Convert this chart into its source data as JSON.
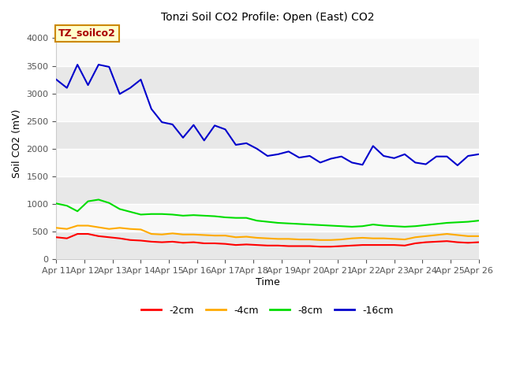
{
  "title": "Tonzi Soil CO2 Profile: Open (East) CO2",
  "ylabel": "Soil CO2 (mV)",
  "xlabel": "Time",
  "annotation": "TZ_soilco2",
  "ylim": [
    0,
    4200
  ],
  "yticks": [
    0,
    500,
    1000,
    1500,
    2000,
    2500,
    3000,
    3500,
    4000
  ],
  "colors": {
    "-2cm": "#ff0000",
    "-4cm": "#ffaa00",
    "-8cm": "#00dd00",
    "-16cm": "#0000cc"
  },
  "x_labels": [
    "Apr 11",
    "Apr 12",
    "Apr 13",
    "Apr 14",
    "Apr 15",
    "Apr 16",
    "Apr 17",
    "Apr 18",
    "Apr 19",
    "Apr 20",
    "Apr 21",
    "Apr 22",
    "Apr 23",
    "Apr 24",
    "Apr 25",
    "Apr 26"
  ],
  "series_16cm": [
    3250,
    3100,
    3520,
    3150,
    3520,
    3480,
    2990,
    3100,
    3250,
    2720,
    2480,
    2440,
    2200,
    2430,
    2150,
    2420,
    2350,
    2070,
    2100,
    2000,
    1870,
    1900,
    1950,
    1840,
    1870,
    1750,
    1820,
    1860,
    1750,
    1710,
    2050,
    1870,
    1830,
    1900,
    1750,
    1720,
    1860,
    1860,
    1700,
    1870,
    1900
  ],
  "series_8cm": [
    1010,
    970,
    870,
    1050,
    1080,
    1020,
    910,
    860,
    810,
    820,
    820,
    810,
    790,
    800,
    790,
    780,
    760,
    750,
    750,
    700,
    680,
    660,
    650,
    640,
    630,
    620,
    610,
    600,
    590,
    600,
    630,
    610,
    600,
    590,
    600,
    620,
    640,
    660,
    670,
    680,
    700
  ],
  "series_4cm": [
    570,
    550,
    610,
    610,
    580,
    550,
    570,
    550,
    540,
    460,
    450,
    470,
    450,
    450,
    440,
    430,
    430,
    400,
    410,
    390,
    380,
    370,
    370,
    360,
    360,
    350,
    350,
    360,
    380,
    390,
    380,
    380,
    370,
    360,
    400,
    420,
    440,
    460,
    440,
    420,
    420
  ],
  "series_2cm": [
    400,
    380,
    460,
    460,
    420,
    400,
    380,
    350,
    340,
    320,
    310,
    320,
    300,
    310,
    290,
    290,
    280,
    260,
    270,
    260,
    250,
    250,
    240,
    240,
    240,
    230,
    230,
    240,
    250,
    260,
    260,
    260,
    260,
    250,
    290,
    310,
    320,
    330,
    310,
    300,
    310
  ]
}
